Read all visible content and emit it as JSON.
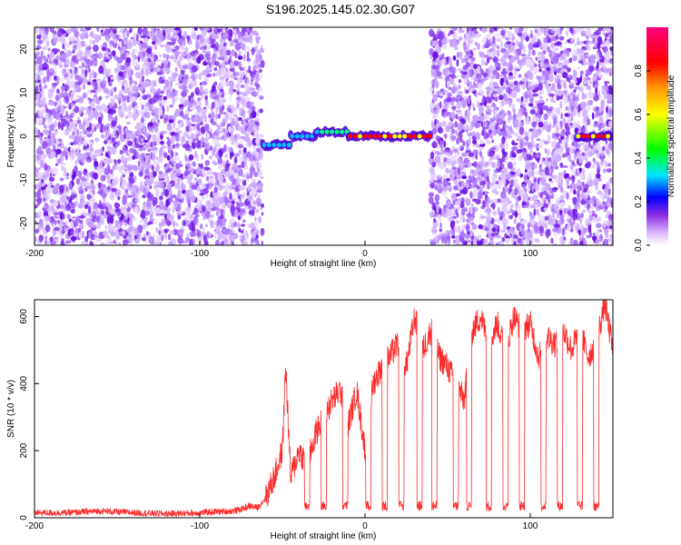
{
  "figure_title": "S196.2025.145.02.30.G07",
  "chart_data": [
    {
      "type": "heatmap",
      "xlabel": "Height of straight line (km)",
      "ylabel": "Frequency (Hz)",
      "xlim": [
        -200,
        150
      ],
      "ylim": [
        -25,
        25
      ],
      "xticks": [
        -200,
        -100,
        0,
        100
      ],
      "yticks": [
        -20,
        -10,
        0,
        10,
        20
      ],
      "colorbar": {
        "label": "Normalized spectral amplitude",
        "range": [
          0,
          1
        ],
        "ticks": [
          "0.0",
          "0.2",
          "0.4",
          "0.6",
          "0.8"
        ],
        "colormap": [
          "#ffffff",
          "#c9a6ff",
          "#7a1ff0",
          "#0000ff",
          "#00e5ff",
          "#00ff00",
          "#ffff00",
          "#ff9900",
          "#ff0000",
          "#ff007f"
        ]
      },
      "noise_regions_km": [
        [
          -200,
          -62
        ],
        [
          40,
          150
        ]
      ],
      "empty_region_km": [
        -62,
        40
      ],
      "signal": {
        "description_segments": [
          {
            "x_start": -62,
            "x_end": -45,
            "freq_hz": -2,
            "peak_amplitude": 0.3
          },
          {
            "x_start": -45,
            "x_end": -30,
            "freq_hz": 0,
            "peak_amplitude": 0.45
          },
          {
            "x_start": -30,
            "x_end": -10,
            "freq_hz": 1,
            "peak_amplitude": 0.5
          },
          {
            "x_start": -10,
            "x_end": 40,
            "freq_hz": 0,
            "peak_amplitude": 0.9
          },
          {
            "x_start": 128,
            "x_end": 150,
            "freq_hz": 0,
            "peak_amplitude": 0.9
          }
        ]
      }
    },
    {
      "type": "line",
      "xlabel": "Height of straight line (km)",
      "ylabel": "SNR (10 * v/v)",
      "xlim": [
        -200,
        150
      ],
      "ylim": [
        0,
        650
      ],
      "xticks": [
        -200,
        -100,
        0,
        100
      ],
      "yticks": [
        0,
        200,
        400,
        600
      ],
      "series_color": "#ff2a2a",
      "series": [
        {
          "x": [
            -200,
            -180,
            -160,
            -140,
            -120,
            -100,
            -90,
            -80,
            -75,
            -70,
            -65,
            -60,
            -55,
            -50,
            -48,
            -45,
            -40,
            -35,
            -30,
            -25,
            -20,
            -15,
            -10,
            -5,
            0,
            5,
            10,
            15,
            20,
            25,
            30,
            35,
            40,
            45,
            50,
            55,
            60,
            65,
            70,
            75,
            80,
            85,
            90,
            95,
            100,
            105,
            110,
            115,
            120,
            125,
            130,
            135,
            140,
            145,
            150
          ],
          "y": [
            15,
            15,
            20,
            15,
            12,
            15,
            18,
            20,
            25,
            35,
            30,
            60,
            120,
            200,
            460,
            120,
            200,
            160,
            250,
            300,
            350,
            380,
            280,
            380,
            200,
            400,
            450,
            480,
            520,
            450,
            600,
            500,
            560,
            480,
            450,
            400,
            350,
            560,
            600,
            520,
            580,
            500,
            600,
            560,
            580,
            480,
            540,
            520,
            560,
            500,
            560,
            480,
            520,
            640,
            500
          ]
        }
      ],
      "dropouts_km": [
        -35,
        -25,
        -12,
        2,
        12,
        22,
        33,
        42,
        55,
        63,
        75,
        85,
        95,
        108,
        118,
        130,
        140
      ]
    }
  ]
}
